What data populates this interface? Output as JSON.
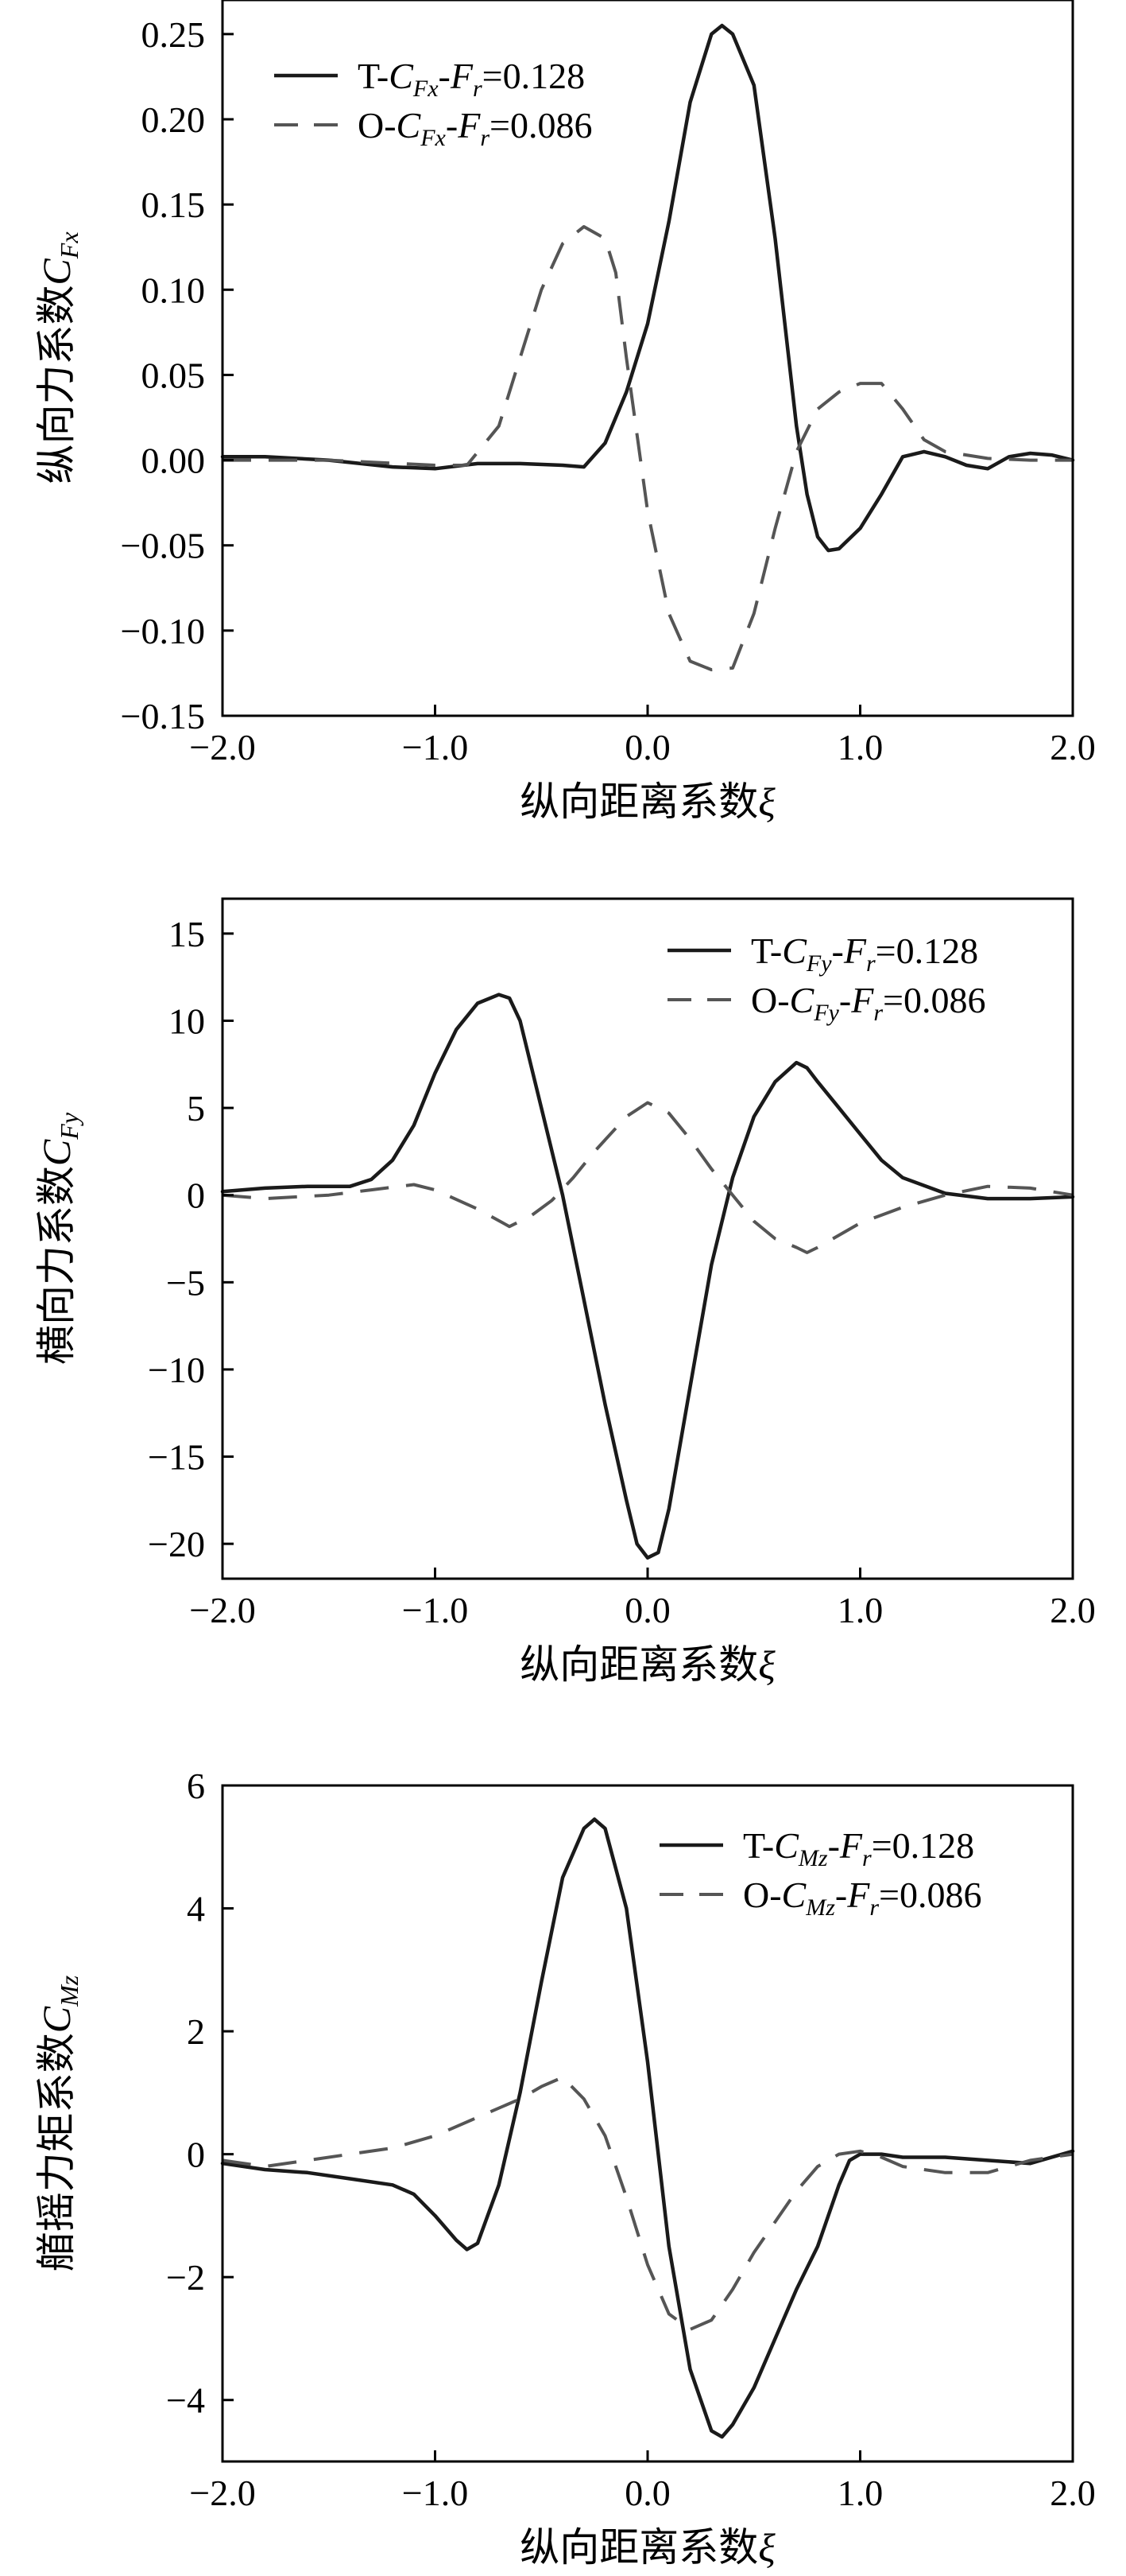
{
  "chart_data": [
    {
      "type": "line",
      "panel_id": "fx",
      "xlabel": {
        "main": "纵向距离系数",
        "sym": "ξ",
        "sub": ""
      },
      "ylabel": {
        "main": "纵向力系数",
        "sym": "C",
        "sub": "Fx"
      },
      "xlim": [
        -2.0,
        2.0
      ],
      "ylim": [
        -0.15,
        0.27
      ],
      "xticks": [
        -2.0,
        -1.0,
        0.0,
        1.0,
        2.0
      ],
      "xtick_labels": [
        "−2.0",
        "−1.0",
        "0.0",
        "1.0",
        "2.0"
      ],
      "yticks": [
        -0.15,
        -0.1,
        -0.05,
        0.0,
        0.05,
        0.1,
        0.15,
        0.2,
        0.25
      ],
      "ytick_labels": [
        "−0.15",
        "−0.10",
        "−0.05",
        "0.00",
        "0.05",
        "0.10",
        "0.15",
        "0.20",
        "0.25"
      ],
      "legend_position": "top-left",
      "series": [
        {
          "style": "solid",
          "color": "#1a1a1a",
          "legend": {
            "prefix": "T-",
            "sym": "C",
            "sub": "Fx",
            "mid": "-",
            "sym2": "F",
            "sub2": "r",
            "tail": "=0.128"
          },
          "x": [
            -2.0,
            -1.8,
            -1.5,
            -1.2,
            -1.0,
            -0.8,
            -0.6,
            -0.4,
            -0.3,
            -0.2,
            -0.1,
            0.0,
            0.1,
            0.2,
            0.3,
            0.35,
            0.4,
            0.5,
            0.6,
            0.7,
            0.75,
            0.8,
            0.85,
            0.9,
            1.0,
            1.1,
            1.2,
            1.3,
            1.4,
            1.5,
            1.6,
            1.7,
            1.8,
            1.9,
            2.0
          ],
          "y": [
            0.002,
            0.002,
            0.0,
            -0.004,
            -0.005,
            -0.002,
            -0.002,
            -0.003,
            -0.004,
            0.01,
            0.04,
            0.08,
            0.14,
            0.21,
            0.25,
            0.255,
            0.25,
            0.22,
            0.13,
            0.02,
            -0.02,
            -0.045,
            -0.053,
            -0.052,
            -0.04,
            -0.02,
            0.002,
            0.005,
            0.002,
            -0.003,
            -0.005,
            0.002,
            0.004,
            0.003,
            0.0
          ]
        },
        {
          "style": "dashed",
          "color": "#555555",
          "legend": {
            "prefix": "O-",
            "sym": "C",
            "sub": "Fx",
            "mid": "-",
            "sym2": "F",
            "sub2": "r",
            "tail": "=0.086"
          },
          "x": [
            -2.0,
            -1.5,
            -1.0,
            -0.85,
            -0.7,
            -0.6,
            -0.5,
            -0.4,
            -0.3,
            -0.2,
            -0.15,
            -0.1,
            0.0,
            0.1,
            0.2,
            0.3,
            0.4,
            0.5,
            0.6,
            0.7,
            0.8,
            0.9,
            1.0,
            1.1,
            1.2,
            1.3,
            1.4,
            1.6,
            1.8,
            2.0
          ],
          "y": [
            0.0,
            0.0,
            -0.003,
            -0.003,
            0.02,
            0.06,
            0.1,
            0.127,
            0.137,
            0.13,
            0.11,
            0.06,
            -0.03,
            -0.09,
            -0.118,
            -0.123,
            -0.122,
            -0.09,
            -0.04,
            0.005,
            0.03,
            0.04,
            0.045,
            0.045,
            0.03,
            0.012,
            0.005,
            0.001,
            0.0,
            0.0
          ]
        }
      ]
    },
    {
      "type": "line",
      "panel_id": "fy",
      "xlabel": {
        "main": "纵向距离系数",
        "sym": "ξ",
        "sub": ""
      },
      "ylabel": {
        "main": "横向力系数",
        "sym": "C",
        "sub": "Fy"
      },
      "xlim": [
        -2.0,
        2.0
      ],
      "ylim": [
        -22,
        17
      ],
      "xticks": [
        -2.0,
        -1.0,
        0.0,
        1.0,
        2.0
      ],
      "xtick_labels": [
        "−2.0",
        "−1.0",
        "0.0",
        "1.0",
        "2.0"
      ],
      "yticks": [
        -20,
        -15,
        -10,
        -5,
        0,
        5,
        10,
        15
      ],
      "ytick_labels": [
        "−20",
        "−15",
        "−10",
        "−5",
        "0",
        "5",
        "10",
        "15"
      ],
      "legend_position": "top-right",
      "series": [
        {
          "style": "solid",
          "color": "#1a1a1a",
          "legend": {
            "prefix": "T-",
            "sym": "C",
            "sub": "Fy",
            "mid": "-",
            "sym2": "F",
            "sub2": "r",
            "tail": "=0.128"
          },
          "x": [
            -2.0,
            -1.8,
            -1.6,
            -1.4,
            -1.3,
            -1.2,
            -1.1,
            -1.0,
            -0.9,
            -0.8,
            -0.7,
            -0.65,
            -0.6,
            -0.5,
            -0.4,
            -0.3,
            -0.2,
            -0.1,
            -0.05,
            0.0,
            0.05,
            0.1,
            0.2,
            0.3,
            0.4,
            0.5,
            0.6,
            0.7,
            0.75,
            0.8,
            0.9,
            1.0,
            1.1,
            1.2,
            1.4,
            1.6,
            1.8,
            2.0
          ],
          "y": [
            0.2,
            0.4,
            0.5,
            0.5,
            0.9,
            2.0,
            4.0,
            7.0,
            9.5,
            11.0,
            11.5,
            11.3,
            10.0,
            5.0,
            0.0,
            -6.0,
            -12.0,
            -17.5,
            -20.0,
            -20.8,
            -20.5,
            -18.0,
            -11.0,
            -4.0,
            1.0,
            4.5,
            6.5,
            7.6,
            7.3,
            6.5,
            5.0,
            3.5,
            2.0,
            1.0,
            0.1,
            -0.2,
            -0.2,
            -0.1
          ]
        },
        {
          "style": "dashed",
          "color": "#555555",
          "legend": {
            "prefix": "O-",
            "sym": "C",
            "sub": "Fy",
            "mid": "-",
            "sym2": "F",
            "sub2": "r",
            "tail": "=0.086"
          },
          "x": [
            -2.0,
            -1.8,
            -1.5,
            -1.3,
            -1.1,
            -1.0,
            -0.8,
            -0.65,
            -0.55,
            -0.45,
            -0.35,
            -0.25,
            -0.1,
            0.0,
            0.1,
            0.2,
            0.3,
            0.4,
            0.5,
            0.6,
            0.7,
            0.75,
            0.8,
            0.9,
            1.0,
            1.2,
            1.4,
            1.6,
            1.8,
            2.0
          ],
          "y": [
            0.0,
            -0.2,
            0.0,
            0.3,
            0.6,
            0.3,
            -0.8,
            -1.8,
            -1.2,
            -0.3,
            1.0,
            2.5,
            4.5,
            5.3,
            4.7,
            3.2,
            1.5,
            0.0,
            -1.5,
            -2.5,
            -3.0,
            -3.3,
            -3.0,
            -2.3,
            -1.6,
            -0.7,
            0.0,
            0.5,
            0.4,
            0.0
          ]
        }
      ]
    },
    {
      "type": "line",
      "panel_id": "mz",
      "xlabel": {
        "main": "纵向距离系数",
        "sym": "ξ",
        "sub": ""
      },
      "ylabel": {
        "main": "艏摇力矩系数",
        "sym": "C",
        "sub": "Mz"
      },
      "xlim": [
        -2.0,
        2.0
      ],
      "ylim": [
        -5,
        6
      ],
      "xticks": [
        -2.0,
        -1.0,
        0.0,
        1.0,
        2.0
      ],
      "xtick_labels": [
        "−2.0",
        "−1.0",
        "0.0",
        "1.0",
        "2.0"
      ],
      "yticks": [
        -4,
        -2,
        0,
        2,
        4,
        6
      ],
      "ytick_labels": [
        "−4",
        "−2",
        "0",
        "2",
        "4",
        "6"
      ],
      "legend_position": "top-right",
      "series": [
        {
          "style": "solid",
          "color": "#1a1a1a",
          "legend": {
            "prefix": "T-",
            "sym": "C",
            "sub": "Mz",
            "mid": "-",
            "sym2": "F",
            "sub2": "r",
            "tail": "=0.128"
          },
          "x": [
            -2.0,
            -1.8,
            -1.6,
            -1.4,
            -1.2,
            -1.1,
            -1.0,
            -0.9,
            -0.85,
            -0.8,
            -0.7,
            -0.6,
            -0.5,
            -0.4,
            -0.3,
            -0.25,
            -0.2,
            -0.1,
            0.0,
            0.1,
            0.2,
            0.3,
            0.35,
            0.4,
            0.5,
            0.6,
            0.7,
            0.8,
            0.9,
            0.95,
            1.0,
            1.1,
            1.2,
            1.4,
            1.6,
            1.8,
            2.0
          ],
          "y": [
            -0.15,
            -0.25,
            -0.3,
            -0.4,
            -0.5,
            -0.65,
            -1.0,
            -1.4,
            -1.55,
            -1.45,
            -0.5,
            1.0,
            2.8,
            4.5,
            5.3,
            5.45,
            5.3,
            4.0,
            1.5,
            -1.5,
            -3.5,
            -4.5,
            -4.6,
            -4.4,
            -3.8,
            -3.0,
            -2.2,
            -1.5,
            -0.5,
            -0.1,
            0.0,
            0.0,
            -0.05,
            -0.05,
            -0.1,
            -0.15,
            0.05
          ]
        },
        {
          "style": "dashed",
          "color": "#555555",
          "legend": {
            "prefix": "O-",
            "sym": "C",
            "sub": "Mz",
            "mid": "-",
            "sym2": "F",
            "sub2": "r",
            "tail": "=0.086"
          },
          "x": [
            -2.0,
            -1.8,
            -1.6,
            -1.4,
            -1.2,
            -1.0,
            -0.8,
            -0.6,
            -0.5,
            -0.4,
            -0.3,
            -0.2,
            -0.1,
            0.0,
            0.1,
            0.2,
            0.3,
            0.4,
            0.5,
            0.6,
            0.7,
            0.8,
            0.9,
            1.0,
            1.1,
            1.2,
            1.4,
            1.6,
            1.8,
            2.0
          ],
          "y": [
            -0.1,
            -0.2,
            -0.1,
            0.0,
            0.1,
            0.3,
            0.6,
            0.9,
            1.1,
            1.25,
            0.9,
            0.3,
            -0.7,
            -1.8,
            -2.6,
            -2.85,
            -2.7,
            -2.2,
            -1.6,
            -1.1,
            -0.6,
            -0.2,
            0.0,
            0.05,
            -0.05,
            -0.2,
            -0.3,
            -0.3,
            -0.1,
            0.0
          ]
        }
      ]
    }
  ]
}
